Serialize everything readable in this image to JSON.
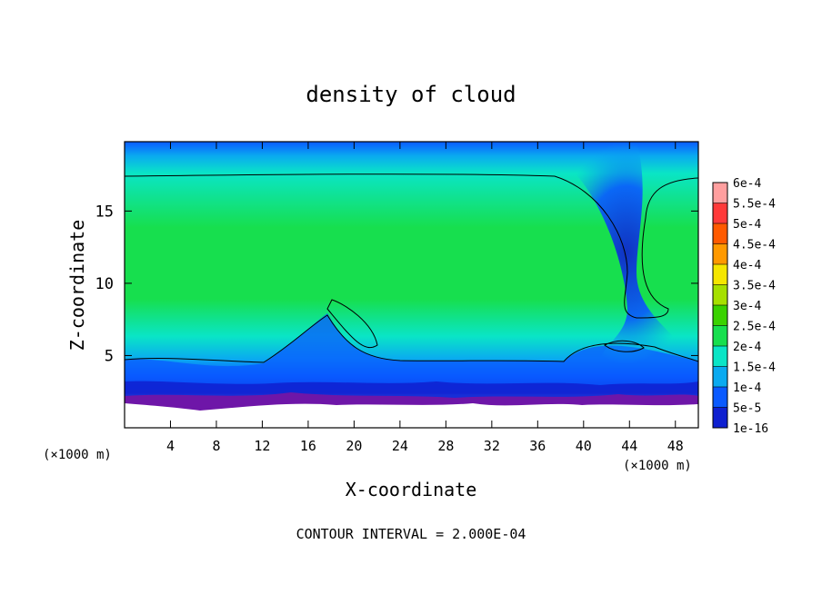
{
  "chart_data": {
    "type": "heatmap",
    "title": "density of cloud",
    "xlabel": "X-coordinate",
    "ylabel": "Z-coordinate",
    "x_unit": "(×1000 m)",
    "x_unit_right": "(×1000 m)",
    "xlim": [
      0,
      50
    ],
    "ylim": [
      0,
      19.8
    ],
    "x_ticks": [
      4,
      8,
      12,
      16,
      20,
      24,
      28,
      32,
      36,
      40,
      44,
      48
    ],
    "y_ticks": [
      5,
      10,
      15
    ],
    "footer": "CONTOUR INTERVAL = 2.000E-04",
    "colorbar": {
      "labels": [
        "6e-4",
        "5.5e-4",
        "5e-4",
        "4.5e-4",
        "4e-4",
        "3.5e-4",
        "3e-4",
        "2.5e-4",
        "2e-4",
        "1.5e-4",
        "1e-4",
        "5e-5",
        "1e-16"
      ],
      "colors": [
        "#ff9f9f",
        "#ff3a3a",
        "#ff5a00",
        "#ff9900",
        "#f5e600",
        "#a6e000",
        "#3ad200",
        "#17df4e",
        "#0ae5c6",
        "#0aaaf0",
        "#0a5aff",
        "#0f20d0",
        "#6e16a8"
      ]
    },
    "cloud_base_z": 2.0,
    "cloud_top_z": 19.8,
    "contour_level": 0.0002
  }
}
